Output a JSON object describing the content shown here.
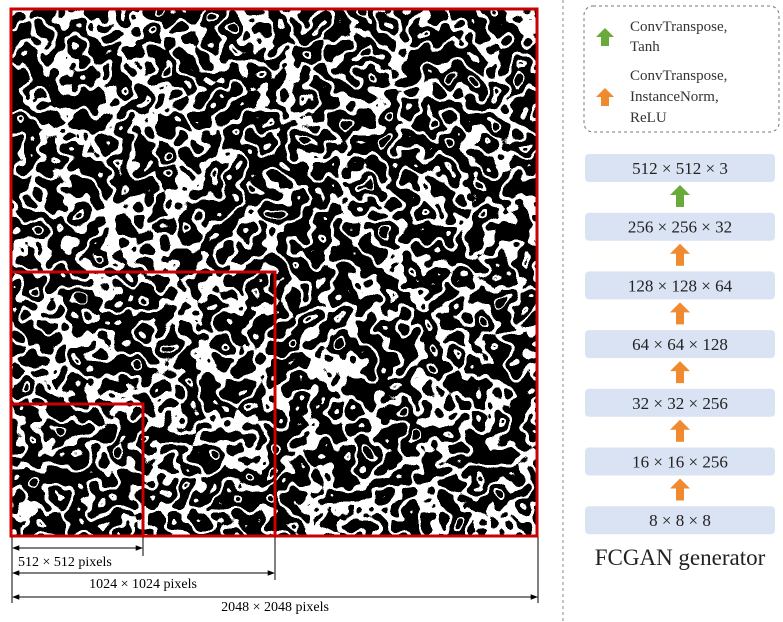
{
  "image": {
    "scales": [
      "512 × 512 pixels",
      "1024 × 1024 pixels",
      "2048 × 2048 pixels"
    ]
  },
  "legend": [
    {
      "lines": [
        "ConvTranspose,",
        "Tanh"
      ]
    },
    {
      "lines": [
        "ConvTranspose,",
        "InstanceNorm,",
        "ReLU"
      ]
    }
  ],
  "layers": [
    "512 × 512 × 3",
    "256 × 256 × 32",
    "128 × 128 × 64",
    "64 × 64 × 128",
    "32 × 32 × 256",
    "16 × 16 × 256",
    "8 × 8 × 8"
  ],
  "caption": "FCGAN generator"
}
